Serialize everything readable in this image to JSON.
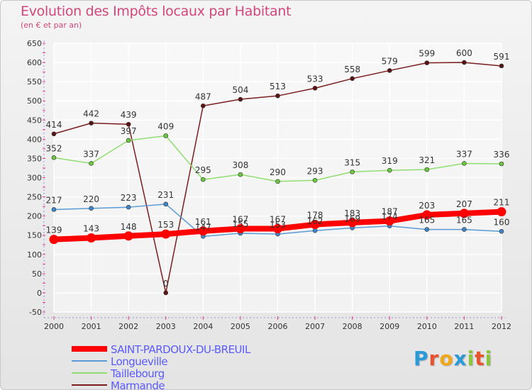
{
  "title": "Evolution des Impôts locaux par Habitant",
  "subtitle": "(en € et par an)",
  "brand": {
    "text": "Proxiti",
    "letters": [
      "P",
      "r",
      "o",
      "x",
      "i",
      "t",
      "i"
    ],
    "colors": [
      "#2a9ad8",
      "#e8532b",
      "#f0a818",
      "#2a9ad8",
      "#8cc63f",
      "#e8532b",
      "#8cc63f"
    ]
  },
  "chart_data": {
    "type": "line",
    "title": "Evolution des Impôts locaux par Habitant",
    "subtitle": "(en € et par an)",
    "xlabel": "",
    "ylabel": "",
    "ylim": [
      -50,
      650
    ],
    "yticks": [
      -50,
      0,
      50,
      100,
      150,
      200,
      250,
      300,
      350,
      400,
      450,
      500,
      550,
      600,
      650
    ],
    "grid": true,
    "legend_position": "bottom-left",
    "x": [
      "2000",
      "2001",
      "2002",
      "2003",
      "2004",
      "2005",
      "2006",
      "2007",
      "2008",
      "2009",
      "2010",
      "2011",
      "2012"
    ],
    "series": [
      {
        "name": "Marmande",
        "color": "#7a1e1e",
        "marker": "#5a1414",
        "width": 1.5,
        "marker_r": 3,
        "values": [
          414,
          442,
          439,
          0,
          487,
          504,
          513,
          533,
          558,
          579,
          599,
          600,
          591
        ],
        "labels": [
          "414",
          "442",
          "439",
          "0",
          "487",
          "504",
          "513",
          "533",
          "558",
          "579",
          "599",
          "600",
          "591"
        ]
      },
      {
        "name": "Taillebourg",
        "color": "#90dd70",
        "marker": "#6cc83c",
        "width": 1.5,
        "marker_r": 3,
        "values": [
          352,
          337,
          397,
          409,
          295,
          308,
          290,
          293,
          315,
          319,
          321,
          337,
          336
        ],
        "labels": [
          "352",
          "337",
          "397",
          "409",
          "295",
          "308",
          "290",
          "293",
          "315",
          "319",
          "321",
          "337",
          "336"
        ]
      },
      {
        "name": "Longueville",
        "color": "#5b9bd5",
        "marker": "#3f86c8",
        "width": 1.5,
        "marker_r": 3,
        "values": [
          217,
          220,
          223,
          231,
          147,
          155,
          153,
          162,
          169,
          174,
          165,
          165,
          160
        ],
        "labels": [
          "217",
          "220",
          "223",
          "231",
          "147",
          "155",
          "153",
          "162",
          "169",
          "174",
          "165",
          "165",
          "160"
        ]
      },
      {
        "name": "SAINT-PARDOUX-DU-BREUIL",
        "color": "#ff0000",
        "marker": "#ff0000",
        "width": 8,
        "marker_r": 6.5,
        "values": [
          139,
          143,
          148,
          153,
          161,
          167,
          167,
          178,
          183,
          187,
          203,
          207,
          211
        ],
        "labels": [
          "139",
          "143",
          "148",
          "153",
          "161",
          "167",
          "167",
          "178",
          "183",
          "187",
          "203",
          "207",
          "211"
        ]
      }
    ]
  },
  "legend": [
    {
      "name": "SAINT-PARDOUX-DU-BREUIL",
      "color": "#ff0000",
      "thickness": 8
    },
    {
      "name": "Longueville",
      "color": "#5b9bd5",
      "thickness": 2
    },
    {
      "name": "Taillebourg",
      "color": "#90dd70",
      "thickness": 2
    },
    {
      "name": "Marmande",
      "color": "#7a1e1e",
      "thickness": 2
    }
  ]
}
